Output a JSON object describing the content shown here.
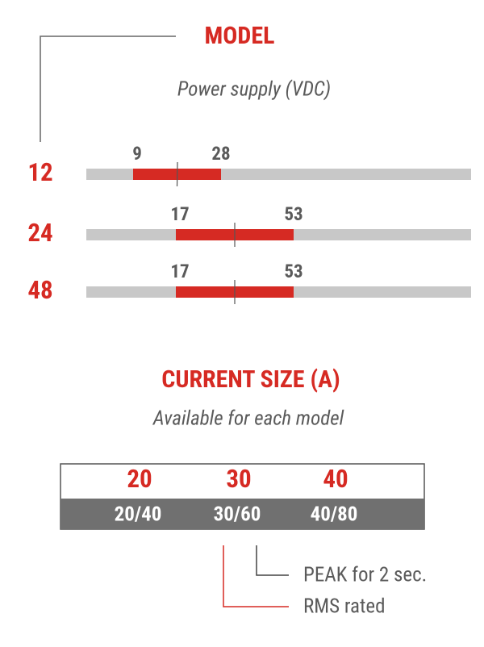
{
  "model": {
    "title": "MODEL",
    "subtitle": "Power supply (VDC)",
    "rows": [
      {
        "label": 12,
        "min": 9,
        "max": 28
      },
      {
        "label": 24,
        "min": 17,
        "max": 53
      },
      {
        "label": 48,
        "min": 17,
        "max": 53
      }
    ]
  },
  "current": {
    "title": "CURRENT SIZE (A)",
    "subtitle": "Available for each model",
    "sizes": [
      {
        "size": 20,
        "rating": "20/40"
      },
      {
        "size": 30,
        "rating": "30/60"
      },
      {
        "size": 40,
        "rating": "40/80"
      }
    ]
  },
  "legend": {
    "peak": "PEAK for 2 sec.",
    "rms": "RMS rated"
  }
}
